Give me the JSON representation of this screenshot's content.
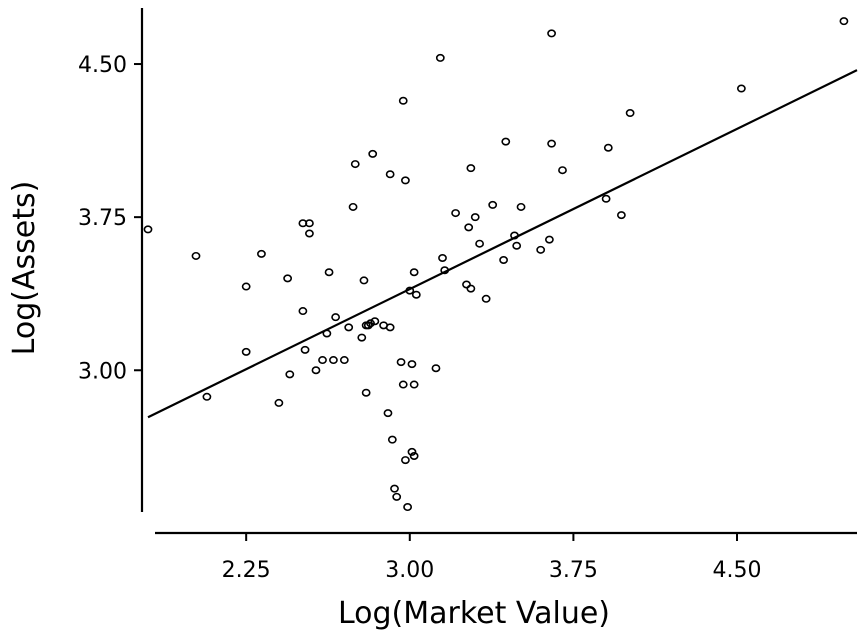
{
  "chart_data": {
    "type": "scatter",
    "title": "",
    "xlabel": "Log(Market Value)",
    "ylabel": "Log(Assets)",
    "xlim": [
      1.8,
      5.05
    ],
    "ylim": [
      2.34,
      4.75
    ],
    "xticks": [
      2.25,
      3.0,
      3.75,
      4.5
    ],
    "yticks": [
      3.0,
      3.75,
      4.5
    ],
    "x_tick_labels": [
      "2.25",
      "3.00",
      "3.75",
      "4.50"
    ],
    "y_tick_labels": [
      "3.00",
      "3.75",
      "4.50"
    ],
    "grid": false,
    "legend": "none",
    "fit_line": {
      "x": [
        1.8,
        5.05
      ],
      "y": [
        2.77,
        4.47
      ]
    },
    "series": [
      {
        "points": [
          [
            1.8,
            3.69
          ],
          [
            2.02,
            3.56
          ],
          [
            2.07,
            2.87
          ],
          [
            2.25,
            3.41
          ],
          [
            2.25,
            3.09
          ],
          [
            2.32,
            3.57
          ],
          [
            2.4,
            2.84
          ],
          [
            2.44,
            3.45
          ],
          [
            2.45,
            2.98
          ],
          [
            2.51,
            3.72
          ],
          [
            2.51,
            3.29
          ],
          [
            2.52,
            3.1
          ],
          [
            2.54,
            3.72
          ],
          [
            2.54,
            3.67
          ],
          [
            2.57,
            3.0
          ],
          [
            2.6,
            3.05
          ],
          [
            2.62,
            3.18
          ],
          [
            2.63,
            3.48
          ],
          [
            2.65,
            3.05
          ],
          [
            2.66,
            3.26
          ],
          [
            2.7,
            3.05
          ],
          [
            2.72,
            3.21
          ],
          [
            2.74,
            3.8
          ],
          [
            2.75,
            4.01
          ],
          [
            2.78,
            3.16
          ],
          [
            2.79,
            3.44
          ],
          [
            2.8,
            3.22
          ],
          [
            2.8,
            2.89
          ],
          [
            2.81,
            3.22
          ],
          [
            2.82,
            3.23
          ],
          [
            2.83,
            4.06
          ],
          [
            2.84,
            3.24
          ],
          [
            2.88,
            3.22
          ],
          [
            2.9,
            2.79
          ],
          [
            2.91,
            3.96
          ],
          [
            2.91,
            3.21
          ],
          [
            2.92,
            2.66
          ],
          [
            2.93,
            2.42
          ],
          [
            2.94,
            2.38
          ],
          [
            2.96,
            3.04
          ],
          [
            2.97,
            2.93
          ],
          [
            2.97,
            4.32
          ],
          [
            2.98,
            3.93
          ],
          [
            2.98,
            2.56
          ],
          [
            2.99,
            2.33
          ],
          [
            3.0,
            3.39
          ],
          [
            3.01,
            2.6
          ],
          [
            3.01,
            3.03
          ],
          [
            3.02,
            2.93
          ],
          [
            3.02,
            2.58
          ],
          [
            3.02,
            3.48
          ],
          [
            3.03,
            3.37
          ],
          [
            3.12,
            3.01
          ],
          [
            3.14,
            4.53
          ],
          [
            3.15,
            3.55
          ],
          [
            3.16,
            3.49
          ],
          [
            3.21,
            3.77
          ],
          [
            3.26,
            3.42
          ],
          [
            3.27,
            3.7
          ],
          [
            3.28,
            3.4
          ],
          [
            3.28,
            3.99
          ],
          [
            3.3,
            3.75
          ],
          [
            3.32,
            3.62
          ],
          [
            3.35,
            3.35
          ],
          [
            3.38,
            3.81
          ],
          [
            3.43,
            3.54
          ],
          [
            3.44,
            4.12
          ],
          [
            3.48,
            3.66
          ],
          [
            3.49,
            3.61
          ],
          [
            3.51,
            3.8
          ],
          [
            3.6,
            3.59
          ],
          [
            3.64,
            3.64
          ],
          [
            3.65,
            4.11
          ],
          [
            3.65,
            4.65
          ],
          [
            3.7,
            3.98
          ],
          [
            3.9,
            3.84
          ],
          [
            3.91,
            4.09
          ],
          [
            3.97,
            3.76
          ],
          [
            4.01,
            4.26
          ],
          [
            4.52,
            4.38
          ],
          [
            4.99,
            4.71
          ]
        ]
      }
    ]
  }
}
